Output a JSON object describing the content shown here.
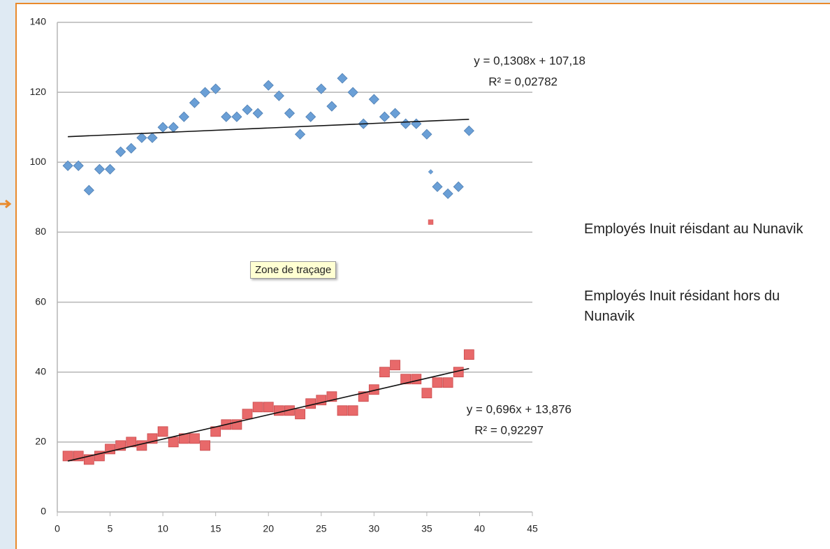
{
  "chart_data": {
    "type": "scatter",
    "xlim": [
      0,
      45
    ],
    "xticks": [
      0,
      5,
      10,
      15,
      20,
      25,
      30,
      35,
      40,
      45
    ],
    "ylim": [
      0,
      140
    ],
    "yticks": [
      0,
      20,
      40,
      60,
      80,
      100,
      120,
      140
    ],
    "grid": true,
    "legend": "right",
    "tooltip": "Zone de traçage",
    "series": [
      {
        "name": "Employés Inuit réisdant au Nunavik",
        "color": "#6a9fd6",
        "marker": "diamond",
        "x": [
          1,
          2,
          3,
          4,
          5,
          6,
          7,
          8,
          9,
          10,
          11,
          12,
          13,
          14,
          15,
          16,
          17,
          18,
          19,
          20,
          21,
          22,
          23,
          24,
          25,
          26,
          27,
          28,
          29,
          30,
          31,
          32,
          33,
          34,
          35,
          36,
          37,
          38,
          39
        ],
        "values": [
          99,
          99,
          92,
          98,
          98,
          103,
          104,
          107,
          107,
          110,
          110,
          113,
          117,
          120,
          121,
          113,
          113,
          115,
          114,
          122,
          119,
          114,
          108,
          113,
          121,
          116,
          124,
          120,
          111,
          118,
          113,
          114,
          111,
          111,
          108,
          93,
          91,
          93,
          109
        ],
        "trendline": {
          "slope": 0.1308,
          "intercept": 107.18,
          "equation": "y = 0,1308x + 107,18",
          "r2": "R² = 0,02782"
        }
      },
      {
        "name": "Employés Inuit résidant hors du Nunavik",
        "color": "#e8696a",
        "marker": "square",
        "x": [
          1,
          2,
          3,
          4,
          5,
          6,
          7,
          8,
          9,
          10,
          11,
          12,
          13,
          14,
          15,
          16,
          17,
          18,
          19,
          20,
          21,
          22,
          23,
          24,
          25,
          26,
          27,
          28,
          29,
          30,
          31,
          32,
          33,
          34,
          35,
          36,
          37,
          38,
          39
        ],
        "values": [
          16,
          16,
          15,
          16,
          18,
          19,
          20,
          19,
          21,
          23,
          20,
          21,
          21,
          19,
          23,
          25,
          25,
          28,
          30,
          30,
          29,
          29,
          28,
          31,
          32,
          33,
          29,
          29,
          33,
          35,
          40,
          42,
          38,
          38,
          34,
          37,
          37,
          40,
          45
        ],
        "trendline": {
          "slope": 0.696,
          "intercept": 13.876,
          "equation": "y = 0,696x + 13,876",
          "r2": "R² = 0,92297"
        }
      }
    ]
  }
}
